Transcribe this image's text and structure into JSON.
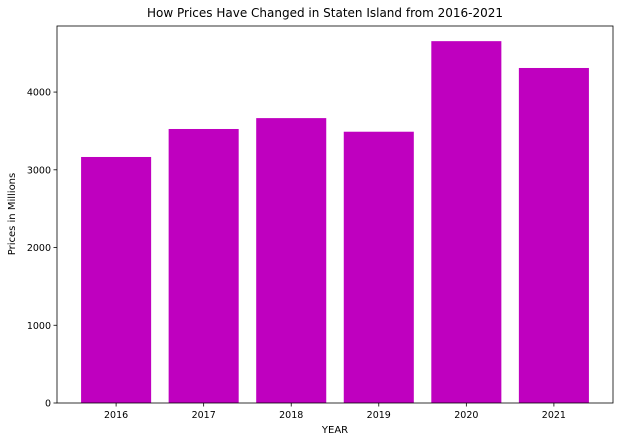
{
  "chart_data": {
    "type": "bar",
    "title": "How Prices Have Changed in Staten Island from 2016-2021",
    "xlabel": "YEAR",
    "ylabel": "Prices in Millions",
    "categories": [
      "2016",
      "2017",
      "2018",
      "2019",
      "2020",
      "2021"
    ],
    "values": [
      3165,
      3525,
      3665,
      3490,
      4655,
      4310
    ],
    "ylim": [
      0,
      4850
    ],
    "yticks": [
      0,
      1000,
      2000,
      3000,
      4000
    ],
    "bar_color": "#bf00bf",
    "grid": false,
    "legend": "none"
  }
}
